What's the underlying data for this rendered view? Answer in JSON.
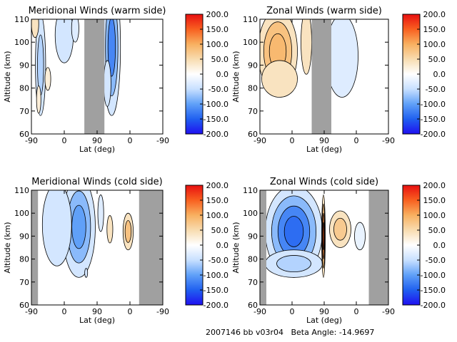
{
  "footer": {
    "date_code": "2007146 bb v03r04",
    "beta_angle": "Beta Angle: -14.9697"
  },
  "colormap": {
    "stops": [
      "#1f10f0",
      "#2060f0",
      "#60a0f8",
      "#c8e0ff",
      "#ffffff",
      "#f8dcb0",
      "#f8b060",
      "#f86020",
      "#e81010"
    ]
  },
  "chart_data": [
    {
      "type": "heatmap",
      "title": "Meridional Winds (warm side)",
      "xlabel": "Lat (deg)",
      "ylabel": "Altitude (km)",
      "x_ticks": [
        "-90",
        "0",
        "90",
        "0",
        "-90"
      ],
      "y_ticks": [
        "60",
        "70",
        "80",
        "90",
        "100",
        "110"
      ],
      "ylim": [
        60,
        110
      ],
      "colorbar_ticks": [
        "200.0",
        "150.0",
        "100.0",
        "50.0",
        "0.0",
        "-50.0",
        "-100.0",
        "-150.0",
        "-200.0"
      ],
      "clim": [
        -200,
        200
      ],
      "gray_bands": [
        [
          55,
          110
        ]
      ],
      "features": [
        {
          "lat": -65,
          "alt": 90,
          "value": -60,
          "w": 14,
          "h": 22
        },
        {
          "lat": -80,
          "alt": 108,
          "value": 40,
          "w": 10,
          "h": 6
        },
        {
          "lat": -45,
          "alt": 84,
          "value": 25,
          "w": 8,
          "h": 5
        },
        {
          "lat": -70,
          "alt": 75,
          "value": 25,
          "w": 6,
          "h": 6
        },
        {
          "lat": 0,
          "alt": 103,
          "value": -40,
          "w": 25,
          "h": 12
        },
        {
          "lat": 30,
          "alt": 106,
          "value": -30,
          "w": 10,
          "h": 6
        },
        {
          "lat": 130,
          "alt": 98,
          "value": -120,
          "w": 24,
          "h": 30
        },
        {
          "lat": 118,
          "alt": 82,
          "value": -40,
          "w": 10,
          "h": 10
        }
      ]
    },
    {
      "type": "heatmap",
      "title": "Zonal Winds (warm side)",
      "xlabel": "Lat (deg)",
      "ylabel": "Altitude (km)",
      "x_ticks": [
        "-90",
        "0",
        "90",
        "0",
        "-90"
      ],
      "y_ticks": [
        "60",
        "70",
        "80",
        "90",
        "100",
        "110"
      ],
      "ylim": [
        60,
        110
      ],
      "colorbar_ticks": [
        "200.0",
        "150.0",
        "100.0",
        "50.0",
        "0.0",
        "-50.0",
        "-100.0",
        "-150.0",
        "-200.0"
      ],
      "clim": [
        -200,
        200
      ],
      "gray_bands": [
        [
          55,
          110
        ]
      ],
      "features": [
        {
          "lat": -40,
          "alt": 96,
          "value": 90,
          "w": 55,
          "h": 18
        },
        {
          "lat": -35,
          "alt": 84,
          "value": 40,
          "w": 50,
          "h": 8
        },
        {
          "lat": 40,
          "alt": 100,
          "value": 40,
          "w": 15,
          "h": 14
        },
        {
          "lat": 140,
          "alt": 94,
          "value": -90,
          "w": 30,
          "h": 14
        },
        {
          "lat": 140,
          "alt": 94,
          "value": -30,
          "w": 45,
          "h": 18
        }
      ]
    },
    {
      "type": "heatmap",
      "title": "Meridional Winds (cold side)",
      "xlabel": "Lat (deg)",
      "ylabel": "Altitude (km)",
      "x_ticks": [
        "-90",
        "0",
        "90",
        "0",
        "-90"
      ],
      "y_ticks": [
        "60",
        "70",
        "80",
        "90",
        "100",
        "110"
      ],
      "ylim": [
        60,
        110
      ],
      "colorbar_ticks": [
        "200.0",
        "150.0",
        "100.0",
        "50.0",
        "0.0",
        "-50.0",
        "-100.0",
        "-150.0",
        "-200.0"
      ],
      "clim": [
        -200,
        200
      ],
      "gray_bands": [
        [
          -90,
          -72
        ],
        [
          205,
          270
        ]
      ],
      "features": [
        {
          "lat": 40,
          "alt": 94,
          "value": -100,
          "w": 45,
          "h": 22
        },
        {
          "lat": -20,
          "alt": 95,
          "value": -40,
          "w": 40,
          "h": 18
        },
        {
          "lat": 175,
          "alt": 92,
          "value": 80,
          "w": 14,
          "h": 8
        },
        {
          "lat": 125,
          "alt": 93,
          "value": 40,
          "w": 8,
          "h": 6
        },
        {
          "lat": 100,
          "alt": 100,
          "value": -30,
          "w": 8,
          "h": 8
        },
        {
          "lat": 60,
          "alt": 74,
          "value": -40,
          "w": 4,
          "h": 2
        }
      ]
    },
    {
      "type": "heatmap",
      "title": "Zonal Winds (cold side)",
      "xlabel": "Lat (deg)",
      "ylabel": "Altitude (km)",
      "x_ticks": [
        "-90",
        "0",
        "90",
        "0",
        "-90"
      ],
      "y_ticks": [
        "60",
        "70",
        "80",
        "90",
        "100",
        "110"
      ],
      "ylim": [
        60,
        110
      ],
      "colorbar_ticks": [
        "200.0",
        "150.0",
        "100.0",
        "50.0",
        "0.0",
        "-50.0",
        "-100.0",
        "-150.0",
        "-200.0"
      ],
      "clim": [
        -200,
        200
      ],
      "gray_bands": [
        [
          -90,
          -72
        ],
        [
          215,
          270
        ]
      ],
      "features": [
        {
          "lat": 5,
          "alt": 92,
          "value": -140,
          "w": 80,
          "h": 20
        },
        {
          "lat": 5,
          "alt": 78,
          "value": -60,
          "w": 80,
          "h": 6
        },
        {
          "lat": 88,
          "alt": 90,
          "value": 150,
          "w": 5,
          "h": 18
        },
        {
          "lat": 135,
          "alt": 93,
          "value": 70,
          "w": 30,
          "h": 8
        },
        {
          "lat": 190,
          "alt": 90,
          "value": -20,
          "w": 15,
          "h": 6
        }
      ]
    }
  ]
}
